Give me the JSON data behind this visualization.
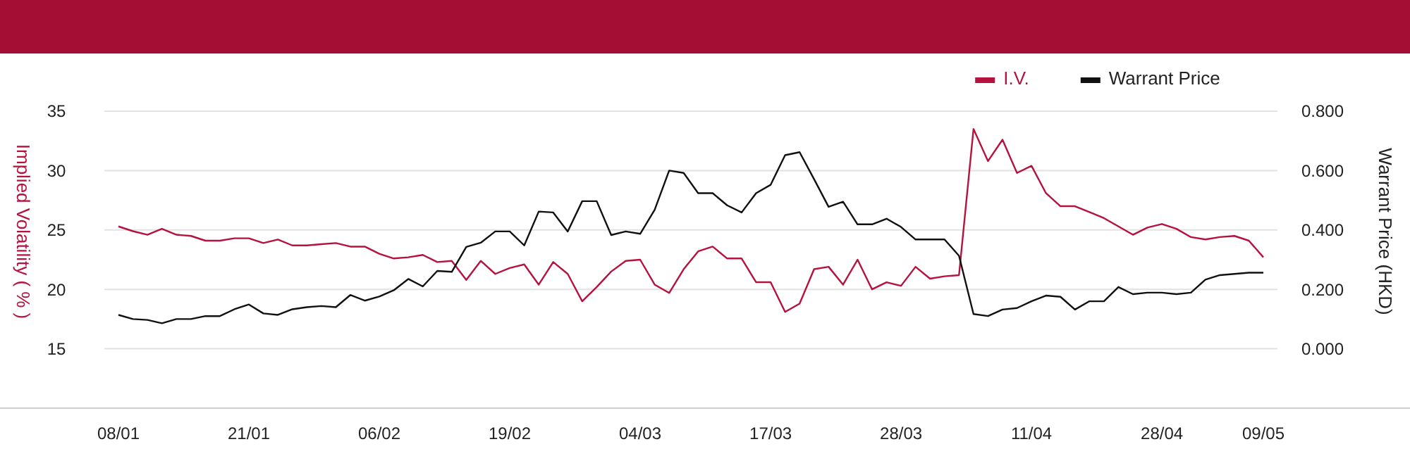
{
  "chart_data": {
    "type": "line",
    "xlabel": null,
    "ylabel": "Implied Volatility ( % )",
    "y2label": "Warrant Price (HKD)",
    "categories": [
      "08/01",
      null,
      null,
      null,
      null,
      null,
      null,
      null,
      null,
      "21/01",
      null,
      null,
      null,
      null,
      null,
      null,
      null,
      null,
      "06/02",
      null,
      null,
      null,
      null,
      null,
      null,
      null,
      null,
      "19/02",
      null,
      null,
      null,
      null,
      null,
      null,
      null,
      null,
      "04/03",
      null,
      null,
      null,
      null,
      null,
      null,
      null,
      null,
      "17/03",
      null,
      null,
      null,
      null,
      null,
      null,
      null,
      null,
      "28/03",
      null,
      null,
      null,
      null,
      null,
      null,
      null,
      null,
      "11/04",
      null,
      null,
      null,
      null,
      null,
      null,
      null,
      null,
      "28/04",
      null,
      null,
      null,
      null,
      null,
      null,
      "09/05"
    ],
    "series": [
      {
        "name": "I.V.",
        "color": "#b5123f",
        "values": [
          25.3,
          24.9,
          24.6,
          25.1,
          24.6,
          24.5,
          24.1,
          24.1,
          24.3,
          24.3,
          23.9,
          24.2,
          23.7,
          23.7,
          23.8,
          23.9,
          23.6,
          23.6,
          23.0,
          22.6,
          22.7,
          22.9,
          22.3,
          22.4,
          20.8,
          22.4,
          21.3,
          21.8,
          22.1,
          20.4,
          22.3,
          21.3,
          19.0,
          20.2,
          21.5,
          22.4,
          22.5,
          20.4,
          19.7,
          21.7,
          23.2,
          23.6,
          22.6,
          22.6,
          20.6,
          20.6,
          18.1,
          18.8,
          21.7,
          21.9,
          20.4,
          22.5,
          20.0,
          20.6,
          20.3,
          21.9,
          20.9,
          21.1,
          21.2,
          33.5,
          30.8,
          32.6,
          29.8,
          30.4,
          28.1,
          27.0,
          27.0,
          26.5,
          26.0,
          25.3,
          24.6,
          25.2,
          25.5,
          25.1,
          24.4,
          24.2,
          24.4,
          24.5,
          24.1,
          22.7
        ]
      },
      {
        "name": "Warrant Price",
        "color": "#111111",
        "axis": "y2",
        "values": [
          0.114,
          0.1,
          0.097,
          0.086,
          0.1,
          0.1,
          0.11,
          0.11,
          0.133,
          0.149,
          0.119,
          0.114,
          0.133,
          0.14,
          0.144,
          0.14,
          0.181,
          0.162,
          0.176,
          0.197,
          0.235,
          0.21,
          0.262,
          0.259,
          0.343,
          0.357,
          0.395,
          0.395,
          0.348,
          0.462,
          0.459,
          0.395,
          0.497,
          0.497,
          0.383,
          0.395,
          0.387,
          0.468,
          0.6,
          0.592,
          0.524,
          0.524,
          0.483,
          0.459,
          0.524,
          0.552,
          0.652,
          0.662,
          0.571,
          0.478,
          0.495,
          0.419,
          0.419,
          0.438,
          0.41,
          0.368,
          0.368,
          0.368,
          0.313,
          0.117,
          0.11,
          0.132,
          0.137,
          0.16,
          0.179,
          0.175,
          0.132,
          0.16,
          0.16,
          0.208,
          0.184,
          0.189,
          0.189,
          0.184,
          0.189,
          0.233,
          0.248,
          0.252,
          0.256,
          0.256
        ]
      }
    ],
    "ylim": [
      10,
      35
    ],
    "yticks": [
      15,
      20,
      25,
      30,
      35
    ],
    "y2lim": [
      -0.2,
      0.8
    ],
    "y2ticks": [
      {
        "value": 0,
        "label": "0.000"
      },
      {
        "value": 0.2,
        "label": "0.200"
      },
      {
        "value": 0.4,
        "label": "0.400"
      },
      {
        "value": 0.6,
        "label": "0.600"
      },
      {
        "value": 0.8,
        "label": "0.800"
      }
    ],
    "grid": "y",
    "legend": "top right",
    "marker": "none",
    "line_style": "solid"
  }
}
